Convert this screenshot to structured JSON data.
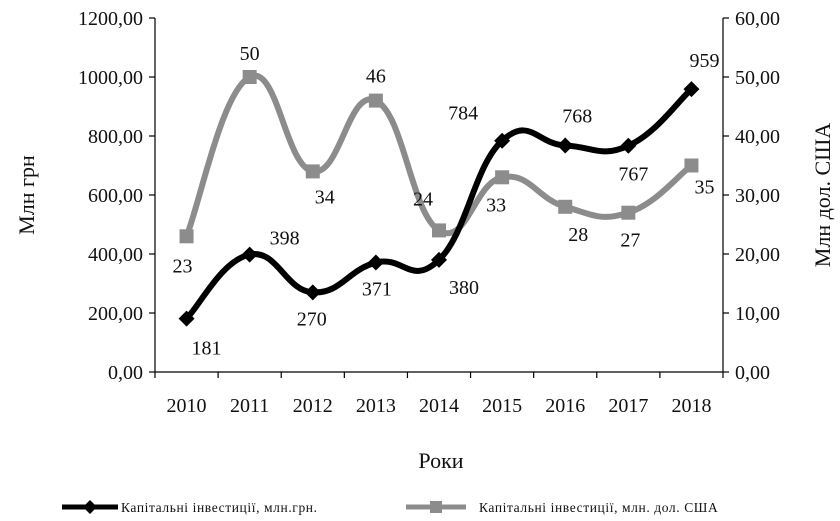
{
  "chart_data": {
    "type": "line",
    "xlabel": "Роки",
    "ylabel_left": "Млн грн",
    "ylabel_right": "Млн дол. США",
    "categories": [
      "2010",
      "2011",
      "2012",
      "2013",
      "2014",
      "2015",
      "2016",
      "2017",
      "2018"
    ],
    "y_left": {
      "lim": [
        0,
        1200
      ],
      "ticks": [
        0,
        200,
        400,
        600,
        800,
        1000,
        1200
      ],
      "tick_labels": [
        "0,00",
        "200,00",
        "400,00",
        "600,00",
        "800,00",
        "1000,00",
        "1200,00"
      ]
    },
    "y_right": {
      "lim": [
        0,
        60
      ],
      "ticks": [
        0,
        10,
        20,
        30,
        40,
        50,
        60
      ],
      "tick_labels": [
        "0,00",
        "10,00",
        "20,00",
        "30,00",
        "40,00",
        "50,00",
        "60,00"
      ]
    },
    "series": [
      {
        "name": "Капітальні інвестиції, млн.грн.",
        "axis": "left",
        "color": "#000000",
        "marker": "diamond",
        "values": [
          181,
          398,
          270,
          371,
          380,
          784,
          768,
          767,
          959
        ],
        "labels": [
          "181",
          "398",
          "270",
          "371",
          "380",
          "784",
          "768",
          "767",
          "959"
        ]
      },
      {
        "name": "Капітальні інвестиції, млн. дол. США",
        "axis": "right",
        "color": "#8c8c8c",
        "marker": "square",
        "values": [
          23,
          50,
          34,
          46,
          24,
          33,
          28,
          27,
          35
        ],
        "labels": [
          "23",
          "50",
          "34",
          "46",
          "24",
          "33",
          "28",
          "27",
          "35"
        ]
      }
    ],
    "legend_position": "bottom",
    "grid": false
  }
}
